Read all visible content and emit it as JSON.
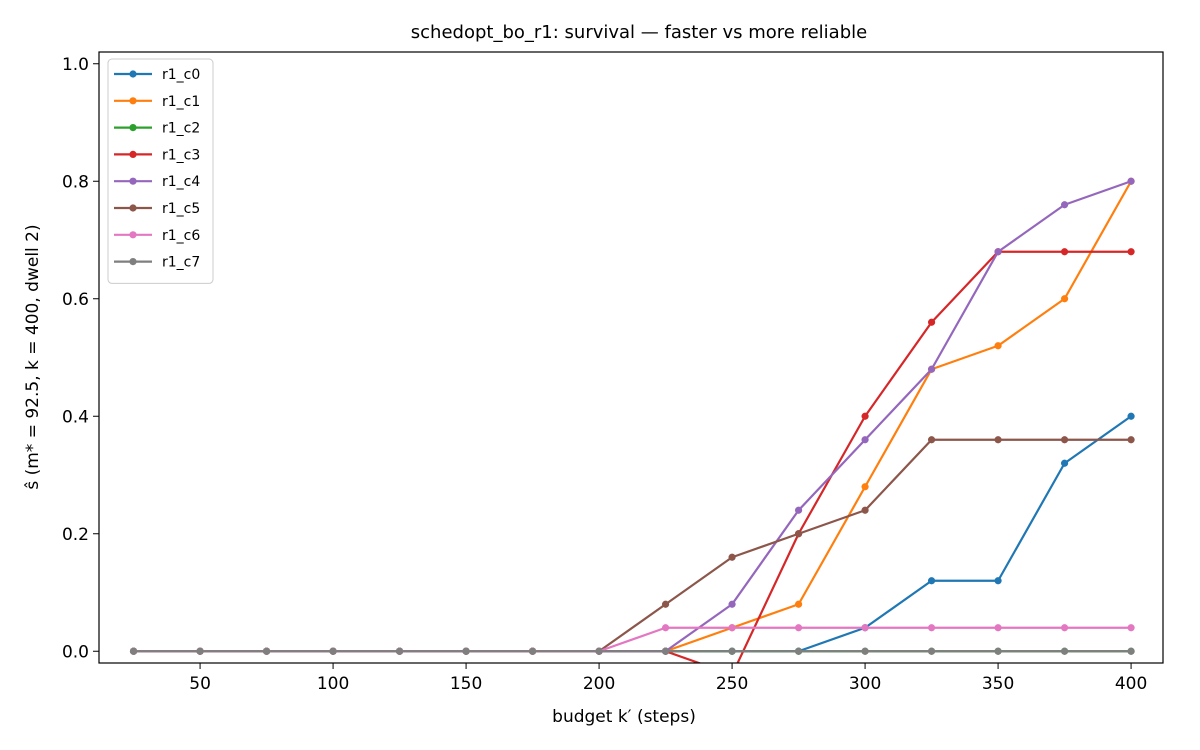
{
  "chart_data": {
    "type": "line",
    "title": "schedopt_bo_r1: survival — faster vs more reliable",
    "xlabel": "budget k′ (steps)",
    "ylabel": "ŝ (m* = 92.5, k = 400, dwell 2)",
    "xlim": [
      12,
      412
    ],
    "ylim": [
      -0.02,
      1.02
    ],
    "xticks": [
      50,
      100,
      150,
      200,
      250,
      300,
      350,
      400
    ],
    "yticks": [
      0.0,
      0.2,
      0.4,
      0.6,
      0.8,
      1.0
    ],
    "ytick_labels": [
      "0.0",
      "0.2",
      "0.4",
      "0.6",
      "0.8",
      "1.0"
    ],
    "grid": false,
    "legend_position": "upper-left",
    "x": [
      25,
      50,
      75,
      100,
      125,
      150,
      175,
      200,
      225,
      250,
      275,
      300,
      325,
      350,
      375,
      400
    ],
    "series": [
      {
        "name": "r1_c0",
        "color": "#1f77b4",
        "values": [
          0,
          0,
          0,
          0,
          0,
          0,
          0,
          0,
          0,
          0,
          0,
          0.04,
          0.12,
          0.12,
          0.32,
          0.4
        ]
      },
      {
        "name": "r1_c1",
        "color": "#ff7f0e",
        "values": [
          0,
          0,
          0,
          0,
          0,
          0,
          0,
          0,
          0,
          0.04,
          0.08,
          0.28,
          0.48,
          0.52,
          0.6,
          0.8
        ]
      },
      {
        "name": "r1_c2",
        "color": "#2ca02c",
        "values": [
          0,
          0,
          0,
          0,
          0,
          0,
          0,
          0,
          0,
          0,
          0,
          0,
          0,
          0,
          0,
          0
        ]
      },
      {
        "name": "r1_c3",
        "color": "#d62728",
        "values": [
          0,
          0,
          0,
          0,
          0,
          0,
          0,
          0,
          0,
          -0.04,
          0.2,
          0.4,
          0.56,
          0.68,
          0.68,
          0.68
        ]
      },
      {
        "name": "r1_c4",
        "color": "#9467bd",
        "values": [
          0,
          0,
          0,
          0,
          0,
          0,
          0,
          0,
          0,
          0.08,
          0.24,
          0.36,
          0.48,
          0.68,
          0.76,
          0.8
        ]
      },
      {
        "name": "r1_c5",
        "color": "#8c564b",
        "values": [
          0,
          0,
          0,
          0,
          0,
          0,
          0,
          0,
          0.08,
          0.16,
          0.2,
          0.24,
          0.36,
          0.36,
          0.36,
          0.36
        ]
      },
      {
        "name": "r1_c6",
        "color": "#e377c2",
        "values": [
          0,
          0,
          0,
          0,
          0,
          0,
          0,
          0,
          0.04,
          0.04,
          0.04,
          0.04,
          0.04,
          0.04,
          0.04,
          0.04
        ]
      },
      {
        "name": "r1_c7",
        "color": "#7f7f7f",
        "values": [
          0,
          0,
          0,
          0,
          0,
          0,
          0,
          0,
          0,
          0,
          0,
          0,
          0,
          0,
          0,
          0
        ]
      }
    ]
  }
}
